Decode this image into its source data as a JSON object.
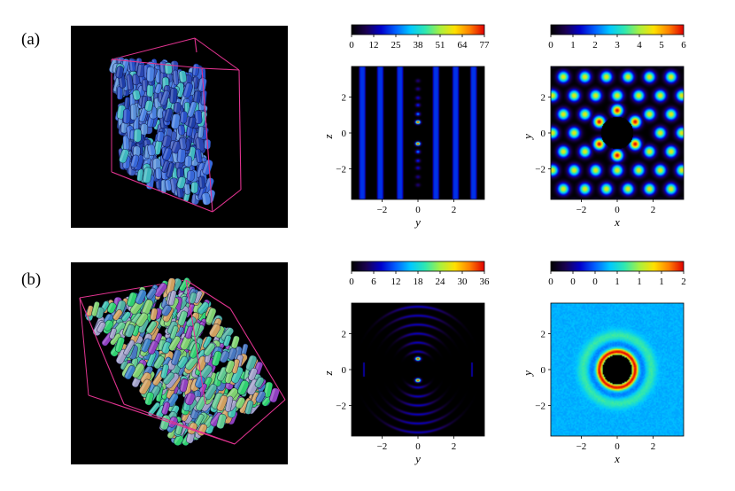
{
  "labels": {
    "a": "(a)",
    "b": "(b)"
  },
  "colors": {
    "frame": "#e0338f",
    "colormap": [
      "#000000",
      "#1a0050",
      "#0000cc",
      "#0060ff",
      "#00c8ff",
      "#30e8b0",
      "#a8f040",
      "#ffe000",
      "#ff8000",
      "#e00000"
    ],
    "tubes_a": [
      "#2850c8",
      "#3868d8",
      "#1e3ea8",
      "#4a80e0",
      "#3a5cc0",
      "#5a90d8",
      "#2a46b0",
      "#40b8c0"
    ],
    "tubes_b": [
      "#50b0a0",
      "#60c890",
      "#3a80c8",
      "#80d070",
      "#4878c0",
      "#a0a0c8",
      "#40c0b0",
      "#9040c0",
      "#d0a060",
      "#30d070"
    ]
  },
  "figure": {
    "a": {
      "render": {
        "name": "particle-render-a"
      },
      "yz": {
        "chart_data": {
          "type": "heatmap",
          "xlabel": "y",
          "ylabel": "z",
          "xlim": [
            -3.7,
            3.7
          ],
          "ylim": [
            -3.7,
            3.7
          ],
          "xticks": [
            -2,
            0,
            2
          ],
          "yticks": [
            -2,
            0,
            2
          ],
          "colorbar_ticks": [
            "0",
            "12",
            "25",
            "38",
            "51",
            "64",
            "77"
          ],
          "colorbar_range": [
            0,
            77
          ],
          "stripes_y": [
            -3.1,
            -2.1,
            -1.0,
            1.0,
            2.1,
            3.1
          ],
          "peaks_z": [
            -2.9,
            -2.45,
            -1.95,
            -1.55,
            -1.05,
            -0.6,
            0.6,
            1.05,
            1.55,
            1.95,
            2.45,
            2.9
          ],
          "peak_values": [
            12,
            14,
            18,
            22,
            30,
            77,
            77,
            30,
            22,
            18,
            14,
            12
          ]
        }
      },
      "xy": {
        "chart_data": {
          "type": "heatmap",
          "xlabel": "x",
          "ylabel": "y",
          "xlim": [
            -3.7,
            3.7
          ],
          "ylim": [
            -3.7,
            3.7
          ],
          "xticks": [
            -2,
            0,
            2
          ],
          "yticks": [
            -2,
            0,
            2
          ],
          "colorbar_ticks": [
            "0",
            "1",
            "2",
            "3",
            "4",
            "5",
            "6"
          ],
          "colorbar_range": [
            0,
            6
          ],
          "lattice_spacing": 1.2,
          "vacancy_radius": 0.9,
          "inner_peaks": [
            [
              -1.0,
              0.62
            ],
            [
              1.0,
              0.62
            ],
            [
              -1.0,
              -0.62
            ],
            [
              1.0,
              -0.62
            ],
            [
              0,
              1.25
            ],
            [
              0,
              -1.25
            ]
          ],
          "inner_peak_value": 6,
          "outer_peak_value": 4.5
        }
      }
    },
    "b": {
      "render": {
        "name": "particle-render-b"
      },
      "yz": {
        "chart_data": {
          "type": "heatmap",
          "xlabel": "y",
          "ylabel": "z",
          "xlim": [
            -3.7,
            3.7
          ],
          "ylim": [
            -3.7,
            3.7
          ],
          "xticks": [
            -2,
            0,
            2
          ],
          "yticks": [
            -2,
            0,
            2
          ],
          "colorbar_ticks": [
            "0",
            "6",
            "12",
            "18",
            "24",
            "30",
            "36"
          ],
          "colorbar_range": [
            0,
            36
          ],
          "peaks_z": [
            -0.6,
            0.6
          ],
          "peak_value": 36,
          "arc_radii": [
            1.0,
            1.5,
            2.0,
            2.5,
            3.0,
            3.5
          ]
        }
      },
      "xy": {
        "chart_data": {
          "type": "heatmap",
          "xlabel": "x",
          "ylabel": "y",
          "xlim": [
            -3.7,
            3.7
          ],
          "ylim": [
            -3.7,
            3.7
          ],
          "xticks": [
            -2,
            0,
            2
          ],
          "yticks": [
            -2,
            0,
            2
          ],
          "colorbar_ticks": [
            "0",
            "0",
            "0",
            "1",
            "1",
            "1",
            "2"
          ],
          "colorbar_range": [
            0,
            2
          ],
          "ring_radius": 1.0,
          "ring_value": 2,
          "background_value": 1,
          "core_radius": 0.82
        }
      }
    }
  }
}
